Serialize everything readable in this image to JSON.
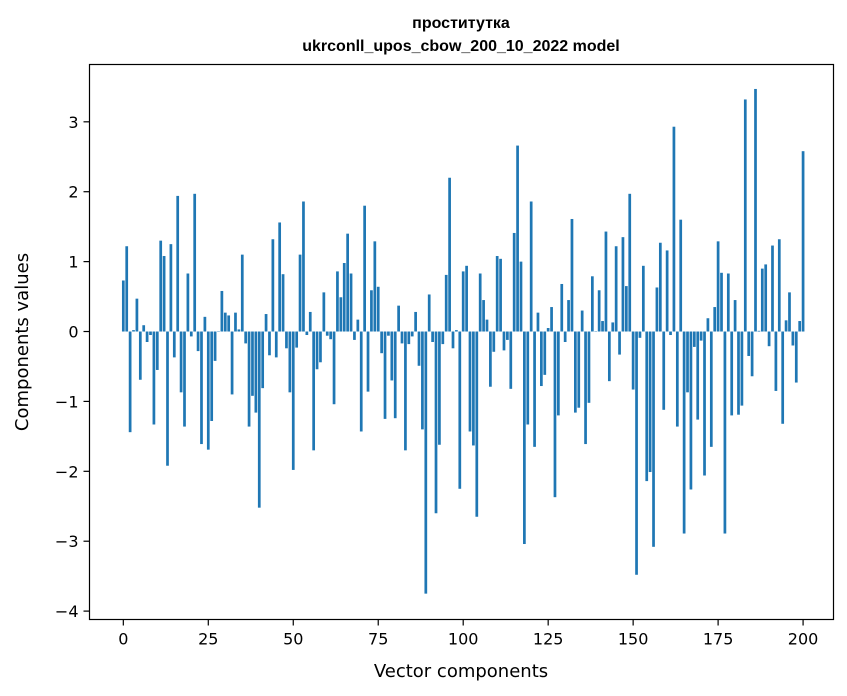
{
  "chart_data": {
    "type": "bar",
    "title": "проститутка",
    "subtitle": "ukrconll_upos_cbow_200_10_2022 model",
    "xlabel": "Vector components",
    "ylabel": "Components values",
    "xlim": [
      -9.95,
      208.95
    ],
    "ylim": [
      -4.12,
      3.82
    ],
    "xticks": [
      0,
      25,
      50,
      75,
      100,
      125,
      150,
      175,
      200
    ],
    "yticks": [
      -4,
      -3,
      -2,
      -1,
      0,
      1,
      2,
      3
    ],
    "ytick_labels": [
      "−4",
      "−3",
      "−2",
      "−1",
      "0",
      "1",
      "2",
      "3"
    ],
    "grid": false,
    "bar_color": "#1f77b4",
    "values": [
      0.73,
      1.22,
      -1.44,
      0.02,
      0.47,
      -0.69,
      0.09,
      -0.15,
      -0.05,
      -1.33,
      -0.55,
      1.3,
      1.08,
      -1.92,
      1.25,
      -0.37,
      1.94,
      -0.87,
      -1.36,
      0.83,
      -0.07,
      1.97,
      -0.28,
      -1.61,
      0.21,
      -1.69,
      -1.28,
      -0.42,
      0.0,
      0.58,
      0.27,
      0.23,
      -0.9,
      0.27,
      0.03,
      1.1,
      -0.17,
      -1.36,
      -0.92,
      -1.16,
      -2.52,
      -0.81,
      0.25,
      -0.34,
      1.32,
      -0.37,
      1.56,
      0.82,
      -0.24,
      -0.87,
      -1.98,
      -0.23,
      1.1,
      1.86,
      -0.05,
      0.28,
      -1.7,
      -0.54,
      -0.44,
      0.56,
      -0.06,
      -0.11,
      -1.04,
      0.86,
      0.49,
      0.98,
      1.4,
      0.83,
      -0.12,
      0.17,
      -1.43,
      1.8,
      -0.86,
      0.59,
      1.29,
      0.64,
      -0.31,
      -1.25,
      -0.06,
      -0.7,
      -1.24,
      0.37,
      -0.17,
      -1.7,
      -0.18,
      -0.07,
      0.28,
      -0.49,
      -1.4,
      -3.75,
      0.53,
      -0.15,
      -2.6,
      -1.62,
      -0.18,
      0.81,
      2.2,
      -0.24,
      0.02,
      -2.25,
      0.86,
      0.94,
      -1.43,
      -1.63,
      -2.65,
      0.83,
      0.45,
      0.17,
      -0.79,
      -0.29,
      1.08,
      1.04,
      -0.27,
      -0.12,
      -0.82,
      1.41,
      2.66,
      1.0,
      -3.04,
      -1.33,
      1.86,
      -1.65,
      0.27,
      -0.78,
      -0.62,
      0.05,
      0.35,
      -2.37,
      -1.2,
      0.68,
      -0.15,
      0.45,
      1.61,
      -1.16,
      -1.09,
      0.3,
      -1.61,
      -1.02,
      0.79,
      0.0,
      0.59,
      0.15,
      1.43,
      -0.71,
      0.13,
      1.22,
      -0.33,
      1.35,
      0.65,
      1.97,
      -0.83,
      -3.48,
      -0.09,
      0.94,
      -2.14,
      -2.01,
      -3.08,
      0.63,
      1.27,
      -1.12,
      1.16,
      -0.05,
      2.93,
      -1.36,
      1.6,
      -2.89,
      -0.87,
      -2.26,
      -0.22,
      -1.26,
      -0.13,
      -2.06,
      0.19,
      -1.65,
      0.35,
      1.29,
      0.84,
      -2.89,
      0.83,
      -1.2,
      0.45,
      -1.19,
      -1.06,
      3.32,
      -0.35,
      -0.64,
      3.47,
      0.01,
      0.9,
      0.96,
      -0.21,
      1.23,
      -0.85,
      1.32,
      -1.32,
      0.16,
      0.56,
      -0.2,
      -0.73,
      0.15,
      2.58
    ]
  }
}
